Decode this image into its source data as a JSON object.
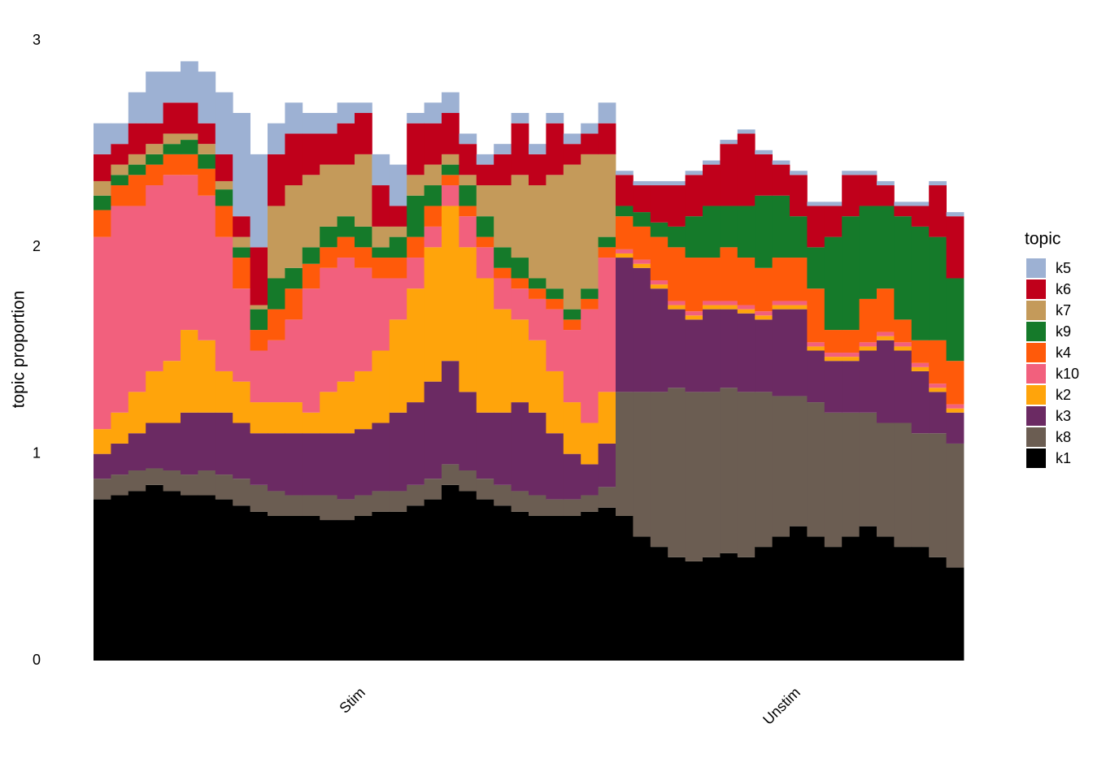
{
  "chart_data": {
    "type": "bar",
    "stacked": true,
    "y_label": "topic proportion",
    "legend_title": "topic",
    "categories": [
      null,
      null,
      null,
      null,
      null,
      null,
      null,
      null,
      null,
      null,
      null,
      null,
      null,
      null,
      null,
      "Stim",
      null,
      null,
      null,
      null,
      null,
      null,
      null,
      null,
      null,
      null,
      null,
      null,
      null,
      null,
      null,
      null,
      null,
      null,
      null,
      null,
      null,
      null,
      null,
      null,
      "Unstim",
      null,
      null,
      null,
      null,
      null,
      null,
      null,
      null,
      null
    ],
    "ylim": [
      0,
      3
    ],
    "yticks": [
      0,
      1,
      2,
      3
    ],
    "grid": false,
    "series": [
      {
        "name": "k5",
        "color": "#9db1d3",
        "values": [
          0.15,
          0.1,
          0.15,
          0.25,
          0.15,
          0.2,
          0.25,
          0.3,
          0.5,
          0.45,
          0.15,
          0.15,
          0.1,
          0.1,
          0.1,
          0.05,
          0.15,
          0.2,
          0.05,
          0.1,
          0.1,
          0.05,
          0.05,
          0.05,
          0.05,
          0.05,
          0.05,
          0.05,
          0.05,
          0.1,
          0.02,
          0.02,
          0.02,
          0.02,
          0.02,
          0.02,
          0.02,
          0.02,
          0.02,
          0.02,
          0.02,
          0.02,
          0.02,
          0.02,
          0.02,
          0.02,
          0.02,
          0.02,
          0.02,
          0.02
        ]
      },
      {
        "name": "k6",
        "color": "#c0001b",
        "values": [
          0.13,
          0.1,
          0.15,
          0.1,
          0.15,
          0.15,
          0.1,
          0.13,
          0.1,
          0.28,
          0.25,
          0.25,
          0.2,
          0.15,
          0.2,
          0.2,
          0.2,
          0.1,
          0.25,
          0.2,
          0.2,
          0.15,
          0.1,
          0.15,
          0.25,
          0.15,
          0.25,
          0.1,
          0.1,
          0.15,
          0.15,
          0.13,
          0.18,
          0.2,
          0.2,
          0.2,
          0.3,
          0.35,
          0.2,
          0.15,
          0.2,
          0.2,
          0.15,
          0.2,
          0.15,
          0.1,
          0.05,
          0.1,
          0.25,
          0.3
        ]
      },
      {
        "name": "k7",
        "color": "#c49a5a",
        "values": [
          0.07,
          0.05,
          0.05,
          0.05,
          0.05,
          0.03,
          0.05,
          0.04,
          0.05,
          0.02,
          0.35,
          0.4,
          0.35,
          0.3,
          0.25,
          0.35,
          0.1,
          0.05,
          0.1,
          0.1,
          0.05,
          0.05,
          0.15,
          0.3,
          0.4,
          0.45,
          0.55,
          0.7,
          0.65,
          0.4,
          0,
          0,
          0,
          0,
          0,
          0,
          0,
          0,
          0,
          0,
          0,
          0,
          0,
          0,
          0,
          0,
          0,
          0,
          0,
          0
        ]
      },
      {
        "name": "k9",
        "color": "#157a2a",
        "values": [
          0.07,
          0.05,
          0.05,
          0.05,
          0.05,
          0.07,
          0.07,
          0.08,
          0.05,
          0.1,
          0.15,
          0.1,
          0.08,
          0.1,
          0.1,
          0.1,
          0.05,
          0.1,
          0.2,
          0.1,
          0.05,
          0.1,
          0.1,
          0.1,
          0.1,
          0.05,
          0.05,
          0.05,
          0.05,
          0.05,
          0.05,
          0.07,
          0.07,
          0.1,
          0.2,
          0.25,
          0.2,
          0.25,
          0.35,
          0.3,
          0.2,
          0.2,
          0.45,
          0.55,
          0.45,
          0.4,
          0.5,
          0.55,
          0.5,
          0.4
        ]
      },
      {
        "name": "k4",
        "color": "#ff5a0a",
        "values": [
          0.13,
          0.1,
          0.15,
          0.1,
          0.1,
          0.1,
          0.13,
          0.15,
          0.15,
          0.1,
          0.15,
          0.15,
          0.12,
          0.1,
          0.1,
          0.1,
          0.1,
          0.1,
          0.1,
          0.1,
          0.05,
          0.05,
          0.05,
          0.05,
          0.05,
          0.05,
          0.05,
          0.05,
          0.05,
          0.05,
          0.16,
          0.16,
          0.21,
          0.26,
          0.26,
          0.21,
          0.26,
          0.23,
          0.21,
          0.21,
          0.21,
          0.26,
          0.11,
          0.11,
          0.21,
          0.21,
          0.11,
          0.11,
          0.21,
          0.21
        ]
      },
      {
        "name": "k10",
        "color": "#f2607d",
        "values": [
          0.93,
          1.0,
          0.9,
          0.9,
          0.9,
          0.75,
          0.7,
          0.65,
          0.45,
          0.25,
          0.3,
          0.4,
          0.6,
          0.6,
          0.6,
          0.5,
          0.35,
          0.2,
          0.15,
          0.1,
          0.1,
          0.15,
          0.15,
          0.15,
          0.15,
          0.2,
          0.3,
          0.35,
          0.55,
          0.65,
          0.02,
          0.02,
          0.02,
          0.02,
          0.02,
          0.02,
          0.02,
          0.02,
          0.02,
          0.02,
          0.02,
          0.02,
          0.02,
          0.02,
          0.02,
          0.02,
          0.02,
          0.02,
          0.02,
          0.02
        ]
      },
      {
        "name": "k2",
        "color": "#ffa40b",
        "values": [
          0.12,
          0.15,
          0.2,
          0.25,
          0.3,
          0.4,
          0.35,
          0.2,
          0.2,
          0.15,
          0.15,
          0.15,
          0.1,
          0.2,
          0.25,
          0.28,
          0.35,
          0.45,
          0.55,
          0.65,
          0.75,
          0.7,
          0.65,
          0.5,
          0.4,
          0.35,
          0.3,
          0.25,
          0.2,
          0.25,
          0.02,
          0.02,
          0.02,
          0.02,
          0.02,
          0.02,
          0.02,
          0.02,
          0.02,
          0.02,
          0.02,
          0.02,
          0.02,
          0.02,
          0.02,
          0.02,
          0.02,
          0.02,
          0.02,
          0.02
        ]
      },
      {
        "name": "k3",
        "color": "#6b2a63",
        "values": [
          0.12,
          0.15,
          0.18,
          0.22,
          0.23,
          0.3,
          0.28,
          0.3,
          0.27,
          0.25,
          0.28,
          0.3,
          0.3,
          0.3,
          0.32,
          0.32,
          0.33,
          0.38,
          0.4,
          0.47,
          0.5,
          0.38,
          0.32,
          0.35,
          0.43,
          0.4,
          0.32,
          0.22,
          0.15,
          0.21,
          0.65,
          0.6,
          0.5,
          0.38,
          0.35,
          0.4,
          0.38,
          0.38,
          0.35,
          0.42,
          0.42,
          0.25,
          0.25,
          0.25,
          0.3,
          0.4,
          0.35,
          0.3,
          0.2,
          0.15
        ]
      },
      {
        "name": "k8",
        "color": "#6b5d52",
        "values": [
          0.1,
          0.1,
          0.1,
          0.08,
          0.1,
          0.1,
          0.12,
          0.12,
          0.13,
          0.13,
          0.12,
          0.1,
          0.1,
          0.12,
          0.1,
          0.1,
          0.1,
          0.1,
          0.1,
          0.1,
          0.1,
          0.1,
          0.1,
          0.1,
          0.1,
          0.1,
          0.08,
          0.08,
          0.08,
          0.1,
          0.6,
          0.7,
          0.75,
          0.82,
          0.82,
          0.8,
          0.8,
          0.8,
          0.75,
          0.68,
          0.63,
          0.65,
          0.65,
          0.6,
          0.55,
          0.55,
          0.6,
          0.55,
          0.6,
          0.6
        ]
      },
      {
        "name": "k1",
        "color": "#000000",
        "values": [
          0.78,
          0.8,
          0.82,
          0.85,
          0.82,
          0.8,
          0.8,
          0.78,
          0.75,
          0.72,
          0.7,
          0.7,
          0.7,
          0.68,
          0.68,
          0.7,
          0.72,
          0.72,
          0.75,
          0.78,
          0.85,
          0.82,
          0.78,
          0.75,
          0.72,
          0.7,
          0.7,
          0.7,
          0.72,
          0.74,
          0.7,
          0.6,
          0.55,
          0.5,
          0.48,
          0.5,
          0.52,
          0.5,
          0.55,
          0.6,
          0.65,
          0.6,
          0.55,
          0.6,
          0.65,
          0.6,
          0.55,
          0.55,
          0.5,
          0.45
        ]
      }
    ]
  }
}
